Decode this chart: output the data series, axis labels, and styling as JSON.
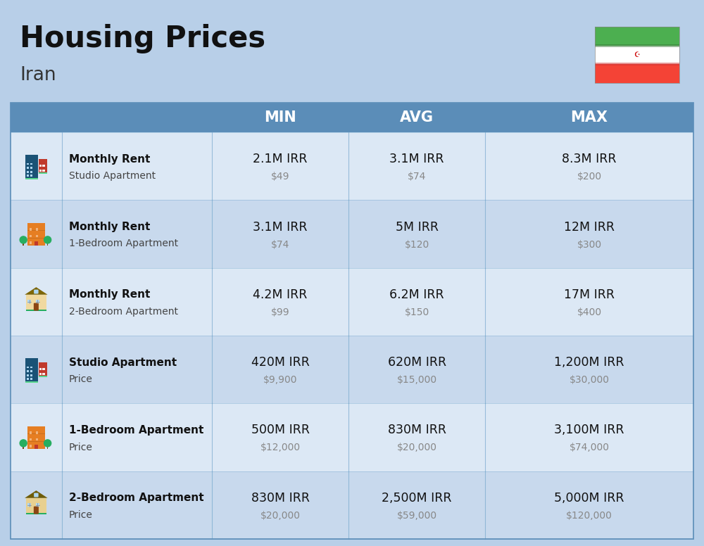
{
  "title": "Housing Prices",
  "subtitle": "Iran",
  "background_color": "#b8cfe8",
  "header_bg_color": "#5b8db8",
  "header_text_color": "#ffffff",
  "row_bg_color_1": "#dce8f5",
  "row_bg_color_2": "#c8d9ed",
  "col_separator_color": "#5b8db8",
  "header_labels": [
    "MIN",
    "AVG",
    "MAX"
  ],
  "rows": [
    {
      "bold_label": "Monthly Rent",
      "sub_label": "Studio Apartment",
      "min_irr": "2.1M IRR",
      "min_usd": "$49",
      "avg_irr": "3.1M IRR",
      "avg_usd": "$74",
      "max_irr": "8.3M IRR",
      "max_usd": "$200",
      "icon_type": "blue_studio"
    },
    {
      "bold_label": "Monthly Rent",
      "sub_label": "1-Bedroom Apartment",
      "min_irr": "3.1M IRR",
      "min_usd": "$74",
      "avg_irr": "5M IRR",
      "avg_usd": "$120",
      "max_irr": "12M IRR",
      "max_usd": "$300",
      "icon_type": "orange_building"
    },
    {
      "bold_label": "Monthly Rent",
      "sub_label": "2-Bedroom Apartment",
      "min_irr": "4.2M IRR",
      "min_usd": "$99",
      "avg_irr": "6.2M IRR",
      "avg_usd": "$150",
      "max_irr": "17M IRR",
      "max_usd": "$400",
      "icon_type": "beige_house"
    },
    {
      "bold_label": "Studio Apartment",
      "sub_label": "Price",
      "min_irr": "420M IRR",
      "min_usd": "$9,900",
      "avg_irr": "620M IRR",
      "avg_usd": "$15,000",
      "max_irr": "1,200M IRR",
      "max_usd": "$30,000",
      "icon_type": "blue_studio"
    },
    {
      "bold_label": "1-Bedroom Apartment",
      "sub_label": "Price",
      "min_irr": "500M IRR",
      "min_usd": "$12,000",
      "avg_irr": "830M IRR",
      "avg_usd": "$20,000",
      "max_irr": "3,100M IRR",
      "max_usd": "$74,000",
      "icon_type": "orange_building"
    },
    {
      "bold_label": "2-Bedroom Apartment",
      "sub_label": "Price",
      "min_irr": "830M IRR",
      "min_usd": "$20,000",
      "avg_irr": "2,500M IRR",
      "avg_usd": "$59,000",
      "max_irr": "5,000M IRR",
      "max_usd": "$120,000",
      "icon_type": "beige_house2"
    }
  ]
}
